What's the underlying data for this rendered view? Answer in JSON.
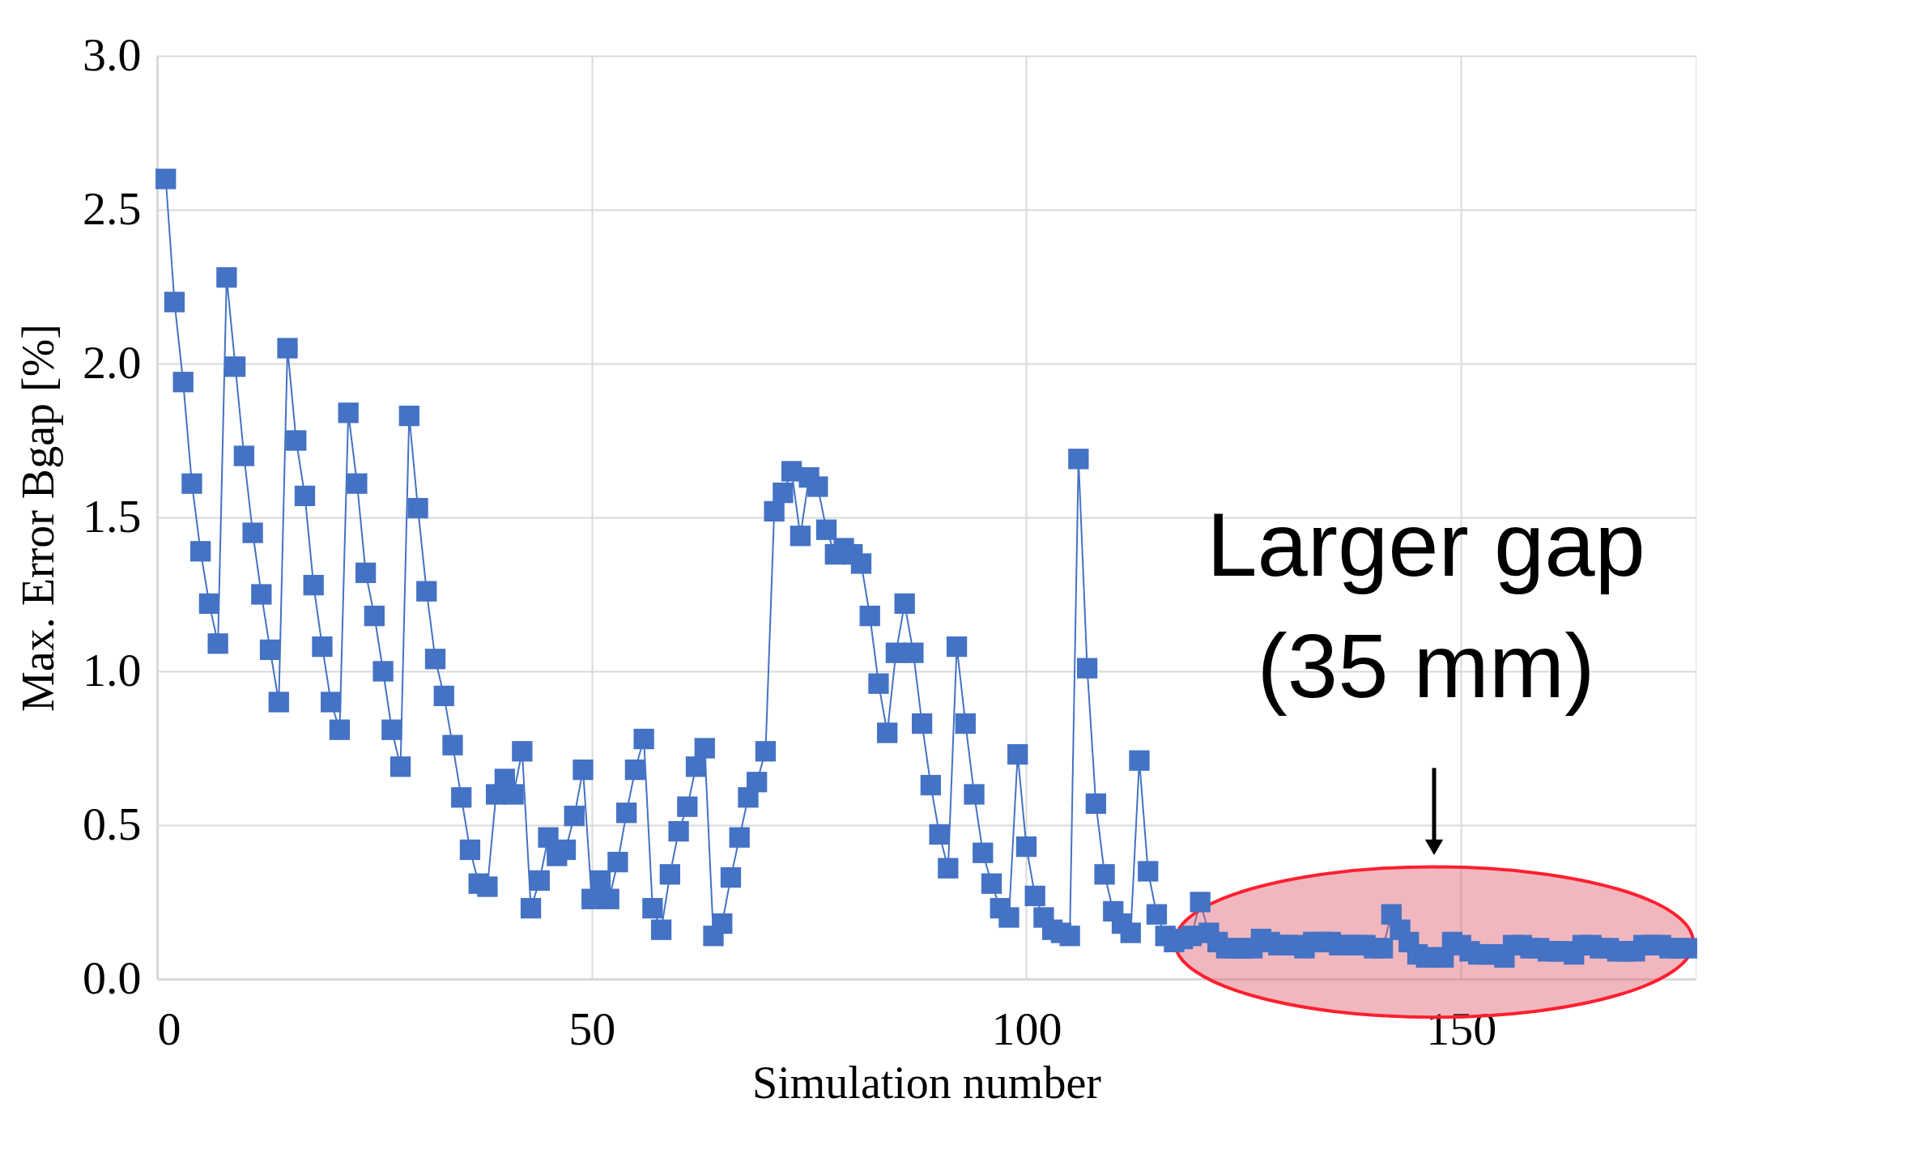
{
  "chart_data": {
    "type": "line",
    "xlabel": "Simulation number",
    "ylabel": "Max. Error Bgap [%]",
    "x": [
      1,
      2,
      3,
      4,
      5,
      6,
      7,
      8,
      9,
      10,
      11,
      12,
      13,
      14,
      15,
      16,
      17,
      18,
      19,
      20,
      21,
      22,
      23,
      24,
      25,
      26,
      27,
      28,
      29,
      30,
      31,
      32,
      33,
      34,
      35,
      36,
      37,
      38,
      39,
      40,
      41,
      42,
      43,
      44,
      45,
      46,
      47,
      48,
      49,
      50,
      51,
      52,
      53,
      54,
      55,
      56,
      57,
      58,
      59,
      60,
      61,
      62,
      63,
      64,
      65,
      66,
      67,
      68,
      69,
      70,
      71,
      72,
      73,
      74,
      75,
      76,
      77,
      78,
      79,
      80,
      81,
      82,
      83,
      84,
      85,
      86,
      87,
      88,
      89,
      90,
      91,
      92,
      93,
      94,
      95,
      96,
      97,
      98,
      99,
      100,
      101,
      102,
      103,
      104,
      105,
      106,
      107,
      108,
      109,
      110,
      111,
      112,
      113,
      114,
      115,
      116,
      117,
      118,
      119,
      120,
      121,
      122,
      123,
      124,
      125,
      126,
      127,
      128,
      129,
      130,
      131,
      132,
      133,
      134,
      135,
      136,
      137,
      138,
      139,
      140,
      141,
      142,
      143,
      144,
      145,
      146,
      147,
      148,
      149,
      150,
      151,
      152,
      153,
      154,
      155,
      156,
      157,
      158,
      159,
      160,
      161,
      162,
      163,
      164,
      165,
      166,
      167,
      168,
      169,
      170,
      171,
      172,
      173,
      174,
      175,
      176
    ],
    "series": [
      {
        "color": "#4472c4",
        "values": [
          2.6,
          2.2,
          1.94,
          1.61,
          1.39,
          1.22,
          1.09,
          2.28,
          1.99,
          1.7,
          1.45,
          1.25,
          1.07,
          0.9,
          2.05,
          1.75,
          1.57,
          1.28,
          1.08,
          0.9,
          0.81,
          1.84,
          1.61,
          1.32,
          1.18,
          1.0,
          0.81,
          0.69,
          1.83,
          1.53,
          1.26,
          1.04,
          0.92,
          0.76,
          0.59,
          0.42,
          0.31,
          0.3,
          0.6,
          0.65,
          0.6,
          0.74,
          0.23,
          0.32,
          0.46,
          0.4,
          0.42,
          0.53,
          0.68,
          0.26,
          0.32,
          0.26,
          0.38,
          0.54,
          0.68,
          0.78,
          0.23,
          0.16,
          0.34,
          0.48,
          0.56,
          0.69,
          0.75,
          0.14,
          0.18,
          0.33,
          0.46,
          0.59,
          0.64,
          0.74,
          1.52,
          1.58,
          1.65,
          1.44,
          1.63,
          1.6,
          1.46,
          1.38,
          1.4,
          1.38,
          1.35,
          1.18,
          0.96,
          0.8,
          1.06,
          1.22,
          1.06,
          0.83,
          0.63,
          0.47,
          0.36,
          1.08,
          0.83,
          0.6,
          0.41,
          0.31,
          0.23,
          0.2,
          0.73,
          0.43,
          0.27,
          0.2,
          0.16,
          0.15,
          0.14,
          1.69,
          1.01,
          0.57,
          0.34,
          0.22,
          0.18,
          0.15,
          0.71,
          0.35,
          0.21,
          0.14,
          0.12,
          0.13,
          0.14,
          0.25,
          0.15,
          0.12,
          0.1,
          0.1,
          0.1,
          0.1,
          0.13,
          0.12,
          0.11,
          0.11,
          0.11,
          0.1,
          0.12,
          0.12,
          0.12,
          0.11,
          0.11,
          0.11,
          0.11,
          0.1,
          0.1,
          0.21,
          0.16,
          0.12,
          0.08,
          0.07,
          0.07,
          0.07,
          0.12,
          0.11,
          0.09,
          0.08,
          0.08,
          0.08,
          0.07,
          0.11,
          0.11,
          0.1,
          0.1,
          0.09,
          0.09,
          0.09,
          0.08,
          0.11,
          0.11,
          0.1,
          0.1,
          0.09,
          0.09,
          0.09,
          0.11,
          0.11,
          0.11,
          0.1,
          0.1,
          0.1
        ]
      }
    ],
    "marker": "square",
    "grid": true,
    "xlim": [
      0,
      177
    ],
    "xticks": [
      0,
      50,
      100,
      150
    ],
    "ylim": [
      0,
      3
    ],
    "yticks": [
      {
        "value": 0,
        "label": "0.0"
      },
      {
        "value": 0.5,
        "label": "0.5"
      },
      {
        "value": 1,
        "label": "1.0"
      },
      {
        "value": 1.5,
        "label": "1.5"
      },
      {
        "value": 2,
        "label": "2.0"
      },
      {
        "value": 2.5,
        "label": "2.5"
      },
      {
        "value": 3,
        "label": "3.0"
      }
    ],
    "annotations": [
      "Larger gap\n(35 mm)"
    ]
  }
}
